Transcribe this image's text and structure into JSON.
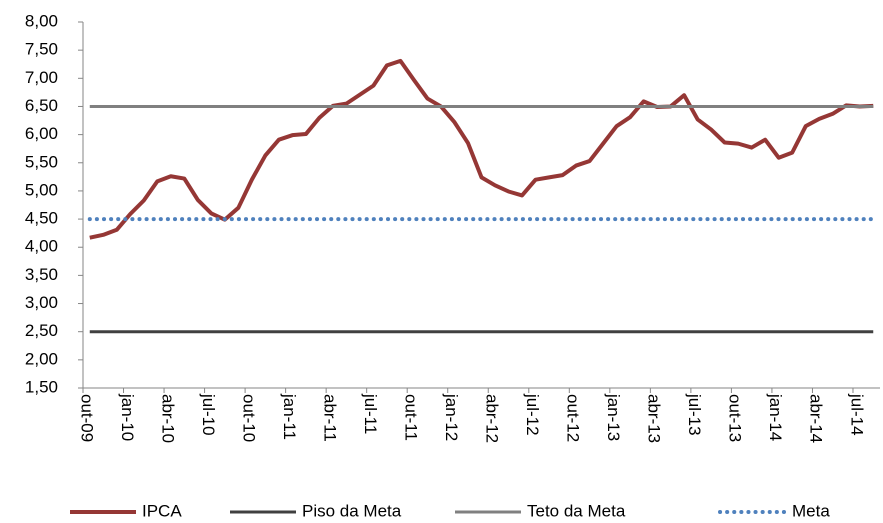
{
  "chart_data": {
    "type": "line",
    "categories": [
      "out-09",
      null,
      null,
      "jan-10",
      null,
      null,
      "abr-10",
      null,
      null,
      "jul-10",
      null,
      null,
      "out-10",
      null,
      null,
      "jan-11",
      null,
      null,
      "abr-11",
      null,
      null,
      "jul-11",
      null,
      null,
      "out-11",
      null,
      null,
      "jan-12",
      null,
      null,
      "abr-12",
      null,
      null,
      "jul-12",
      null,
      null,
      "out-12",
      null,
      null,
      "jan-13",
      null,
      null,
      "abr-13",
      null,
      null,
      "jul-13",
      null,
      null,
      "out-13",
      null,
      null,
      "jan-14",
      null,
      null,
      "abr-14",
      null,
      null,
      "jul-14",
      null
    ],
    "series": [
      {
        "name": "IPCA",
        "color": "#953735",
        "width": 4,
        "style": "solid",
        "values": [
          4.17,
          4.22,
          4.31,
          4.59,
          4.83,
          5.17,
          5.26,
          5.22,
          4.84,
          4.6,
          4.49,
          4.7,
          5.2,
          5.63,
          5.91,
          5.99,
          6.01,
          6.3,
          6.51,
          6.55,
          6.71,
          6.87,
          7.23,
          7.31,
          6.97,
          6.64,
          6.5,
          6.22,
          5.85,
          5.24,
          5.1,
          4.99,
          4.92,
          5.2,
          5.24,
          5.28,
          5.45,
          5.53,
          5.84,
          6.15,
          6.31,
          6.59,
          6.49,
          6.5,
          6.7,
          6.27,
          6.09,
          5.86,
          5.84,
          5.77,
          5.91,
          5.59,
          5.68,
          6.15,
          6.28,
          6.37,
          6.52,
          6.5,
          6.51
        ]
      },
      {
        "name": "Piso da Meta",
        "color": "#404040",
        "width": 3,
        "style": "solid",
        "values": [
          2.5,
          2.5,
          2.5,
          2.5,
          2.5,
          2.5,
          2.5,
          2.5,
          2.5,
          2.5,
          2.5,
          2.5,
          2.5,
          2.5,
          2.5,
          2.5,
          2.5,
          2.5,
          2.5,
          2.5,
          2.5,
          2.5,
          2.5,
          2.5,
          2.5,
          2.5,
          2.5,
          2.5,
          2.5,
          2.5,
          2.5,
          2.5,
          2.5,
          2.5,
          2.5,
          2.5,
          2.5,
          2.5,
          2.5,
          2.5,
          2.5,
          2.5,
          2.5,
          2.5,
          2.5,
          2.5,
          2.5,
          2.5,
          2.5,
          2.5,
          2.5,
          2.5,
          2.5,
          2.5,
          2.5,
          2.5,
          2.5,
          2.5,
          2.5
        ]
      },
      {
        "name": "Teto da Meta",
        "color": "#808080",
        "width": 3,
        "style": "solid",
        "values": [
          6.5,
          6.5,
          6.5,
          6.5,
          6.5,
          6.5,
          6.5,
          6.5,
          6.5,
          6.5,
          6.5,
          6.5,
          6.5,
          6.5,
          6.5,
          6.5,
          6.5,
          6.5,
          6.5,
          6.5,
          6.5,
          6.5,
          6.5,
          6.5,
          6.5,
          6.5,
          6.5,
          6.5,
          6.5,
          6.5,
          6.5,
          6.5,
          6.5,
          6.5,
          6.5,
          6.5,
          6.5,
          6.5,
          6.5,
          6.5,
          6.5,
          6.5,
          6.5,
          6.5,
          6.5,
          6.5,
          6.5,
          6.5,
          6.5,
          6.5,
          6.5,
          6.5,
          6.5,
          6.5,
          6.5,
          6.5,
          6.5,
          6.5,
          6.5
        ]
      },
      {
        "name": "Meta",
        "color": "#4f81bd",
        "width": 4,
        "style": "dotted",
        "values": [
          4.5,
          4.5,
          4.5,
          4.5,
          4.5,
          4.5,
          4.5,
          4.5,
          4.5,
          4.5,
          4.5,
          4.5,
          4.5,
          4.5,
          4.5,
          4.5,
          4.5,
          4.5,
          4.5,
          4.5,
          4.5,
          4.5,
          4.5,
          4.5,
          4.5,
          4.5,
          4.5,
          4.5,
          4.5,
          4.5,
          4.5,
          4.5,
          4.5,
          4.5,
          4.5,
          4.5,
          4.5,
          4.5,
          4.5,
          4.5,
          4.5,
          4.5,
          4.5,
          4.5,
          4.5,
          4.5,
          4.5,
          4.5,
          4.5,
          4.5,
          4.5,
          4.5,
          4.5,
          4.5,
          4.5,
          4.5,
          4.5,
          4.5,
          4.5
        ]
      }
    ],
    "ylim": [
      1.5,
      8
    ],
    "yticks": [
      {
        "value": 1.5,
        "label": "1,50"
      },
      {
        "value": 2,
        "label": "2,00"
      },
      {
        "value": 2.5,
        "label": "2,50"
      },
      {
        "value": 3,
        "label": "3,00"
      },
      {
        "value": 3.5,
        "label": "3,50"
      },
      {
        "value": 4,
        "label": "4,00"
      },
      {
        "value": 4.5,
        "label": "4,50"
      },
      {
        "value": 5,
        "label": "5,00"
      },
      {
        "value": 5.5,
        "label": "5,50"
      },
      {
        "value": 6,
        "label": "6,00"
      },
      {
        "value": 6.5,
        "label": "6,50"
      },
      {
        "value": 7,
        "label": "7,00"
      },
      {
        "value": 7.5,
        "label": "7,50"
      },
      {
        "value": 8,
        "label": "8,00"
      }
    ],
    "grid": false,
    "legend": "bottom"
  }
}
